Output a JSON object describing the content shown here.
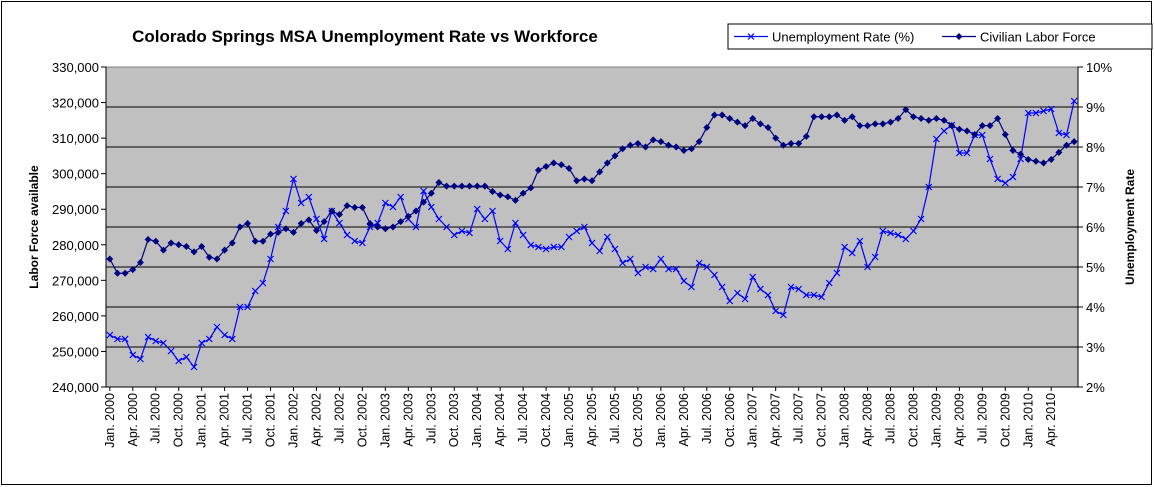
{
  "chart_data": {
    "type": "line",
    "title": "Colorado Springs MSA Unemployment Rate vs Workforce",
    "ylabel": "Labor Force available",
    "y2label": "Unemployment Rate",
    "legend": "top-right",
    "grid": true,
    "categories": [
      "Jan. 2000",
      null,
      null,
      "Apr. 2000",
      null,
      null,
      "Jul. 2000",
      null,
      null,
      "Oct. 2000",
      null,
      null,
      "Jan. 2001",
      null,
      null,
      "Apr. 2001",
      null,
      null,
      "Jul. 2001",
      null,
      null,
      "Oct. 2001",
      null,
      null,
      "Jan. 2002",
      null,
      null,
      "Apr. 2002",
      null,
      null,
      "Jul. 2002",
      null,
      null,
      "Oct. 2002",
      null,
      null,
      "Jan. 2003",
      null,
      null,
      "Apr. 2003",
      null,
      null,
      "Jul. 2003",
      null,
      null,
      "Oct. 2003",
      null,
      null,
      "Jan. 2004",
      null,
      null,
      "Apr. 2004",
      null,
      null,
      "Jul. 2004",
      null,
      null,
      "Oct. 2004",
      null,
      null,
      "Jan. 2005",
      null,
      null,
      "Apr. 2005",
      null,
      null,
      "Jul. 2005",
      null,
      null,
      "Oct. 2005",
      null,
      null,
      "Jan. 2006",
      null,
      null,
      "Apr. 2006",
      null,
      null,
      "Jul. 2006",
      null,
      null,
      "Oct. 2006",
      null,
      null,
      "Jan. 2007",
      null,
      null,
      "Apr. 2007",
      null,
      null,
      "Jul. 2007",
      null,
      null,
      "Oct. 2007",
      null,
      null,
      "Jan. 2008",
      null,
      null,
      "Apr. 2008",
      null,
      null,
      "Jul. 2008",
      null,
      null,
      "Oct. 2008",
      null,
      null,
      "Jan. 2009",
      null,
      null,
      "Apr. 2009",
      null,
      null,
      "Jul. 2009",
      null,
      null,
      "Oct. 2009",
      null,
      null,
      "Jan. 2010",
      null,
      null,
      "Apr. 2010",
      null,
      null,
      null
    ],
    "series": [
      {
        "name": "Unemployment Rate (%)",
        "color": "#0000ff",
        "marker": "x",
        "axis": "y2",
        "values": [
          3.3,
          3.2,
          3.2,
          2.8,
          2.7,
          3.25,
          3.15,
          3.1,
          2.9,
          2.65,
          2.75,
          2.5,
          3.1,
          3.2,
          3.5,
          3.3,
          3.2,
          4.0,
          4.0,
          4.4,
          4.6,
          5.2,
          6.0,
          6.4,
          7.2,
          6.6,
          6.75,
          6.2,
          5.7,
          6.4,
          6.1,
          5.8,
          5.65,
          5.6,
          6.0,
          6.1,
          6.6,
          6.5,
          6.75,
          6.2,
          6.0,
          6.9,
          6.5,
          6.2,
          6.0,
          5.8,
          5.9,
          5.85,
          6.45,
          6.2,
          6.4,
          5.65,
          5.45,
          6.1,
          5.8,
          5.55,
          5.5,
          5.45,
          5.5,
          5.5,
          5.75,
          5.9,
          6.0,
          5.6,
          5.4,
          5.75,
          5.45,
          5.1,
          5.2,
          4.85,
          5.0,
          4.95,
          5.2,
          4.95,
          4.95,
          4.65,
          4.5,
          5.1,
          5.0,
          4.8,
          4.5,
          4.15,
          4.35,
          4.2,
          4.75,
          4.45,
          4.3,
          3.9,
          3.8,
          4.5,
          4.45,
          4.3,
          4.3,
          4.25,
          4.6,
          4.85,
          5.5,
          5.35,
          5.65,
          5.0,
          5.25,
          5.9,
          5.85,
          5.8,
          5.7,
          5.9,
          6.2,
          7.0,
          8.2,
          8.4,
          8.55,
          7.85,
          7.85,
          8.3,
          8.3,
          7.7,
          7.2,
          7.1,
          7.25,
          7.7,
          8.85,
          8.85,
          8.9,
          8.95,
          8.35,
          8.3,
          9.15
        ]
      },
      {
        "name": "Civilian Labor Force",
        "color": "#000080",
        "marker": "diamond",
        "values": [
          276000,
          272000,
          272000,
          273000,
          275000,
          281500,
          281000,
          278500,
          280500,
          280000,
          279500,
          278000,
          279500,
          276500,
          276000,
          278500,
          280500,
          285000,
          286000,
          281000,
          281000,
          283000,
          283500,
          284500,
          283500,
          286000,
          287000,
          284000,
          286500,
          289500,
          288500,
          291000,
          290500,
          290500,
          286000,
          285000,
          284500,
          285000,
          286500,
          288000,
          289500,
          292000,
          294500,
          297500,
          296500,
          296500,
          296500,
          296500,
          296500,
          296500,
          295000,
          294000,
          293500,
          292500,
          294500,
          296000,
          301000,
          302000,
          303000,
          302500,
          301500,
          298000,
          298500,
          298000,
          300500,
          303000,
          305000,
          307000,
          308000,
          308500,
          307500,
          309500,
          309000,
          308000,
          307500,
          306500,
          307000,
          309000,
          313000,
          316500,
          316500,
          315500,
          314500,
          313500,
          315500,
          314000,
          313000,
          310000,
          308000,
          308500,
          308500,
          310500,
          316000,
          316000,
          316000,
          316500,
          315000,
          316000,
          313500,
          313500,
          314000,
          314000,
          314500,
          315500,
          318000,
          316000,
          315500,
          315000,
          315500,
          315000,
          313500,
          312500,
          312000,
          311000,
          313500,
          313500,
          315500,
          311000,
          306500,
          305500,
          304000,
          303500,
          303000,
          304000,
          306000,
          308000,
          309000
        ]
      }
    ],
    "ylim": [
      240000,
      330000
    ],
    "yticks": [
      {
        "value": 240000,
        "label": "240,000"
      },
      {
        "value": 250000,
        "label": "250,000"
      },
      {
        "value": 260000,
        "label": "260,000"
      },
      {
        "value": 270000,
        "label": "270,000"
      },
      {
        "value": 280000,
        "label": "280,000"
      },
      {
        "value": 290000,
        "label": "290,000"
      },
      {
        "value": 300000,
        "label": "300,000"
      },
      {
        "value": 310000,
        "label": "310,000"
      },
      {
        "value": 320000,
        "label": "320,000"
      },
      {
        "value": 330000,
        "label": "330,000"
      }
    ],
    "y2lim": [
      2,
      10
    ],
    "y2ticks": [
      {
        "value": 2,
        "label": "2%"
      },
      {
        "value": 3,
        "label": "3%"
      },
      {
        "value": 4,
        "label": "4%"
      },
      {
        "value": 5,
        "label": "5%"
      },
      {
        "value": 6,
        "label": "6%"
      },
      {
        "value": 7,
        "label": "7%"
      },
      {
        "value": 8,
        "label": "8%"
      },
      {
        "value": 9,
        "label": "9%"
      },
      {
        "value": 10,
        "label": "10%"
      }
    ]
  }
}
